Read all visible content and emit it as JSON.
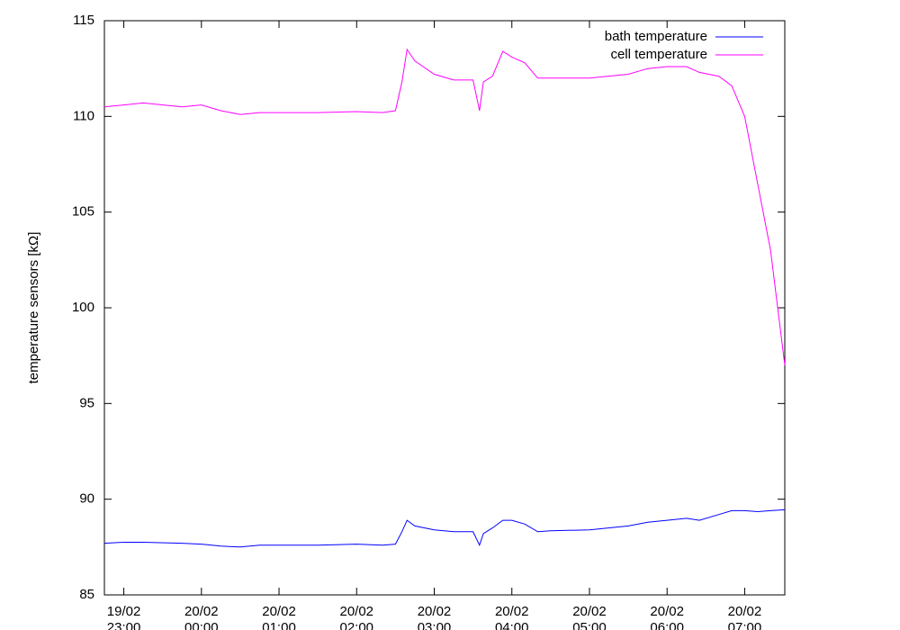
{
  "chart_data": {
    "type": "line",
    "y_label": "temperature sensors [kΩ]",
    "x": [
      "19/02 22:45",
      "19/02 23:00",
      "19/02 23:15",
      "19/02 23:45",
      "20/02 00:00",
      "20/02 00:15",
      "20/02 00:30",
      "20/02 00:45",
      "20/02 01:00",
      "20/02 01:30",
      "20/02 02:00",
      "20/02 02:20",
      "20/02 02:30",
      "20/02 02:35",
      "20/02 02:39",
      "20/02 02:45",
      "20/02 03:00",
      "20/02 03:15",
      "20/02 03:30",
      "20/02 03:35",
      "20/02 03:38",
      "20/02 03:45",
      "20/02 03:53",
      "20/02 04:00",
      "20/02 04:10",
      "20/02 04:20",
      "20/02 04:30",
      "20/02 05:00",
      "20/02 05:30",
      "20/02 05:45",
      "20/02 06:00",
      "20/02 06:15",
      "20/02 06:25",
      "20/02 06:40",
      "20/02 06:50",
      "20/02 07:00",
      "20/02 07:10",
      "20/02 07:20",
      "20/02 07:31"
    ],
    "series": [
      {
        "name": "bath temperature",
        "color": "#0000ff",
        "values": [
          87.7,
          87.75,
          87.75,
          87.7,
          87.65,
          87.55,
          87.5,
          87.6,
          87.6,
          87.6,
          87.65,
          87.6,
          87.65,
          88.3,
          88.9,
          88.6,
          88.4,
          88.3,
          88.3,
          87.6,
          88.2,
          88.5,
          88.9,
          88.9,
          88.7,
          88.3,
          88.35,
          88.4,
          88.6,
          88.8,
          88.9,
          89.0,
          88.9,
          89.2,
          89.4,
          89.4,
          89.35,
          89.4,
          89.45
        ]
      },
      {
        "name": "cell temperature",
        "color": "#ff00ff",
        "values": [
          110.5,
          110.6,
          110.7,
          110.5,
          110.6,
          110.3,
          110.1,
          110.2,
          110.2,
          110.2,
          110.25,
          110.2,
          110.3,
          111.8,
          113.5,
          112.9,
          112.2,
          111.9,
          111.9,
          110.3,
          111.8,
          112.1,
          113.4,
          113.1,
          112.8,
          112.0,
          112.0,
          112.0,
          112.2,
          112.5,
          112.6,
          112.6,
          112.3,
          112.1,
          111.6,
          110.0,
          106.5,
          103.0,
          97.0
        ]
      }
    ],
    "xlim": [
      "19/02 22:45",
      "20/02 07:31"
    ],
    "xticks": [
      "19/02 23:00",
      "20/02 00:00",
      "20/02 01:00",
      "20/02 02:00",
      "20/02 03:00",
      "20/02 04:00",
      "20/02 05:00",
      "20/02 06:00",
      "20/02 07:00"
    ],
    "ylim": [
      85,
      115
    ],
    "yticks": [
      85,
      90,
      95,
      100,
      105,
      110,
      115
    ],
    "legend": "top-right"
  }
}
